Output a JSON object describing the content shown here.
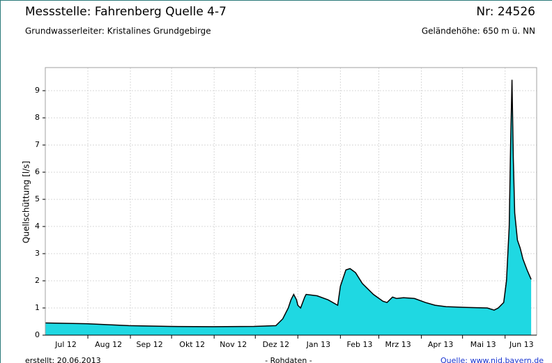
{
  "header": {
    "title": "Messstelle: Fahrenberg Quelle 4-7",
    "number": "Nr: 24526",
    "aquifer": "Grundwasserleiter: Kristalines Grundgebirge",
    "elevation": "Geländehöhe: 650 m ü. NN"
  },
  "chart_data": {
    "type": "area",
    "ylabel": "Quellschüttung [l/s]",
    "color": "#1fd8e2",
    "line_color": "#000000",
    "grid": true,
    "xlim": [
      0,
      358
    ],
    "ylim": [
      0,
      9.85
    ],
    "yticks": [
      0,
      1,
      2,
      3,
      4,
      5,
      6,
      7,
      8,
      9
    ],
    "xticks": [
      {
        "value": 15,
        "label": "Jul 12"
      },
      {
        "value": 46,
        "label": "Aug 12"
      },
      {
        "value": 76,
        "label": "Sep 12"
      },
      {
        "value": 107,
        "label": "Okt 12"
      },
      {
        "value": 137,
        "label": "Nov 12"
      },
      {
        "value": 168,
        "label": "Dez 12"
      },
      {
        "value": 199,
        "label": "Jan 13"
      },
      {
        "value": 229,
        "label": "Feb 13"
      },
      {
        "value": 257,
        "label": "Mrz 13"
      },
      {
        "value": 288,
        "label": "Apr 13"
      },
      {
        "value": 319,
        "label": "Mai 13"
      },
      {
        "value": 347,
        "label": "Jun 13"
      }
    ],
    "xgrid": [
      31,
      62,
      92,
      123,
      153,
      184,
      215,
      243,
      274,
      304,
      335
    ],
    "x": [
      0,
      30,
      61,
      91,
      122,
      152,
      168,
      173,
      177,
      179,
      181,
      183,
      184,
      186,
      189,
      190,
      198,
      206,
      213,
      215,
      217,
      219,
      222,
      226,
      231,
      239,
      246,
      249,
      253,
      256,
      261,
      269,
      277,
      284,
      292,
      307,
      322,
      327,
      330,
      334,
      336,
      338,
      339,
      340,
      341,
      342,
      344,
      346,
      348,
      351,
      354
    ],
    "values": [
      0.45,
      0.42,
      0.35,
      0.32,
      0.31,
      0.32,
      0.35,
      0.6,
      1.0,
      1.3,
      1.5,
      1.3,
      1.1,
      1.0,
      1.4,
      1.5,
      1.45,
      1.3,
      1.1,
      1.8,
      2.1,
      2.4,
      2.45,
      2.3,
      1.9,
      1.5,
      1.25,
      1.2,
      1.4,
      1.35,
      1.38,
      1.35,
      1.2,
      1.1,
      1.05,
      1.02,
      1.0,
      0.92,
      1.0,
      1.2,
      2.0,
      4.0,
      7.0,
      9.4,
      6.5,
      4.5,
      3.5,
      3.2,
      2.8,
      2.4,
      2.05
    ]
  },
  "footer": {
    "created": "erstellt:  20.06.2013",
    "note": "- Rohdaten -",
    "source": "Quelle: www.nid.bayern.de"
  }
}
